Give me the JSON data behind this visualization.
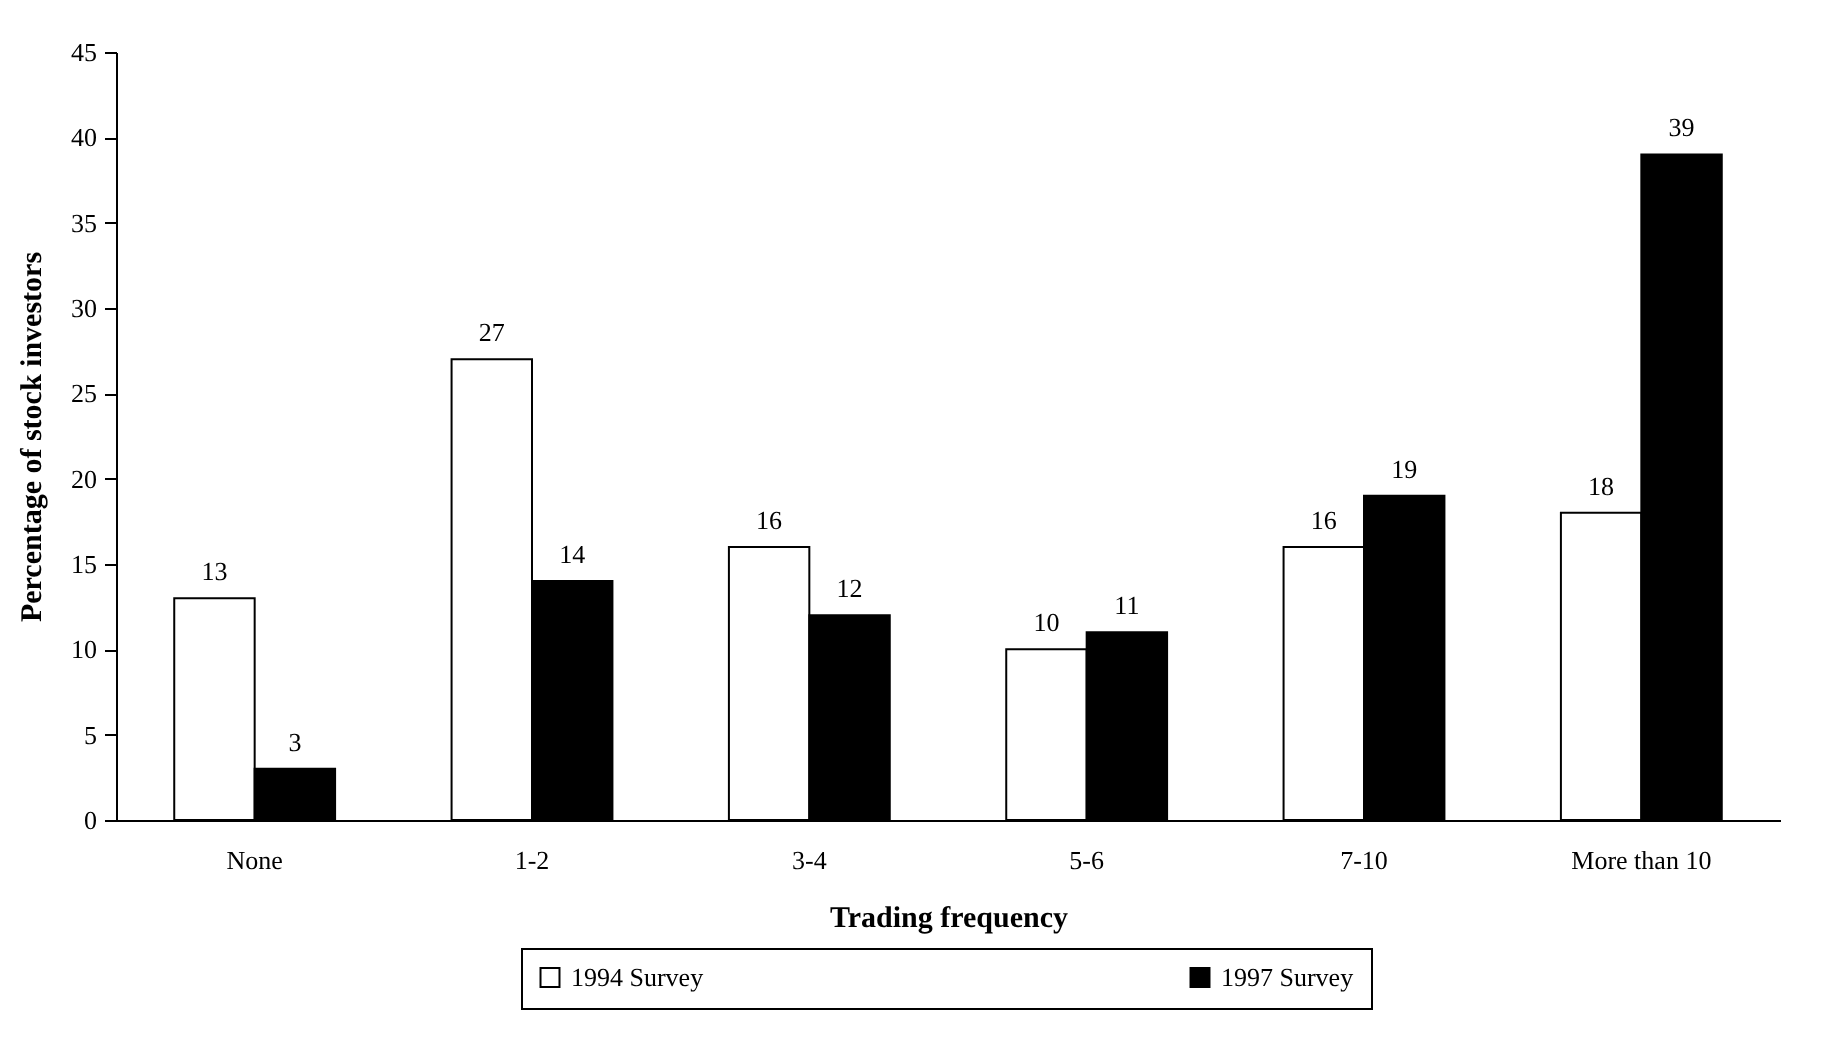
{
  "chart_data": {
    "type": "bar",
    "xlabel": "Trading frequency",
    "ylabel": "Percentage of stock investors",
    "categories": [
      "None",
      "1-2",
      "3-4",
      "5-6",
      "7-10",
      "More than 10"
    ],
    "series": [
      {
        "name": "1994 Survey",
        "color": "#ffffff",
        "values": [
          13,
          27,
          16,
          10,
          16,
          18
        ]
      },
      {
        "name": "1997 Survey",
        "color": "#000000",
        "values": [
          3,
          14,
          12,
          11,
          19,
          39
        ]
      }
    ],
    "ylim": [
      0,
      45
    ],
    "yticks": [
      0,
      5,
      10,
      15,
      20,
      25,
      30,
      35,
      40,
      45
    ],
    "legend": "bottom",
    "data_labels": true
  }
}
